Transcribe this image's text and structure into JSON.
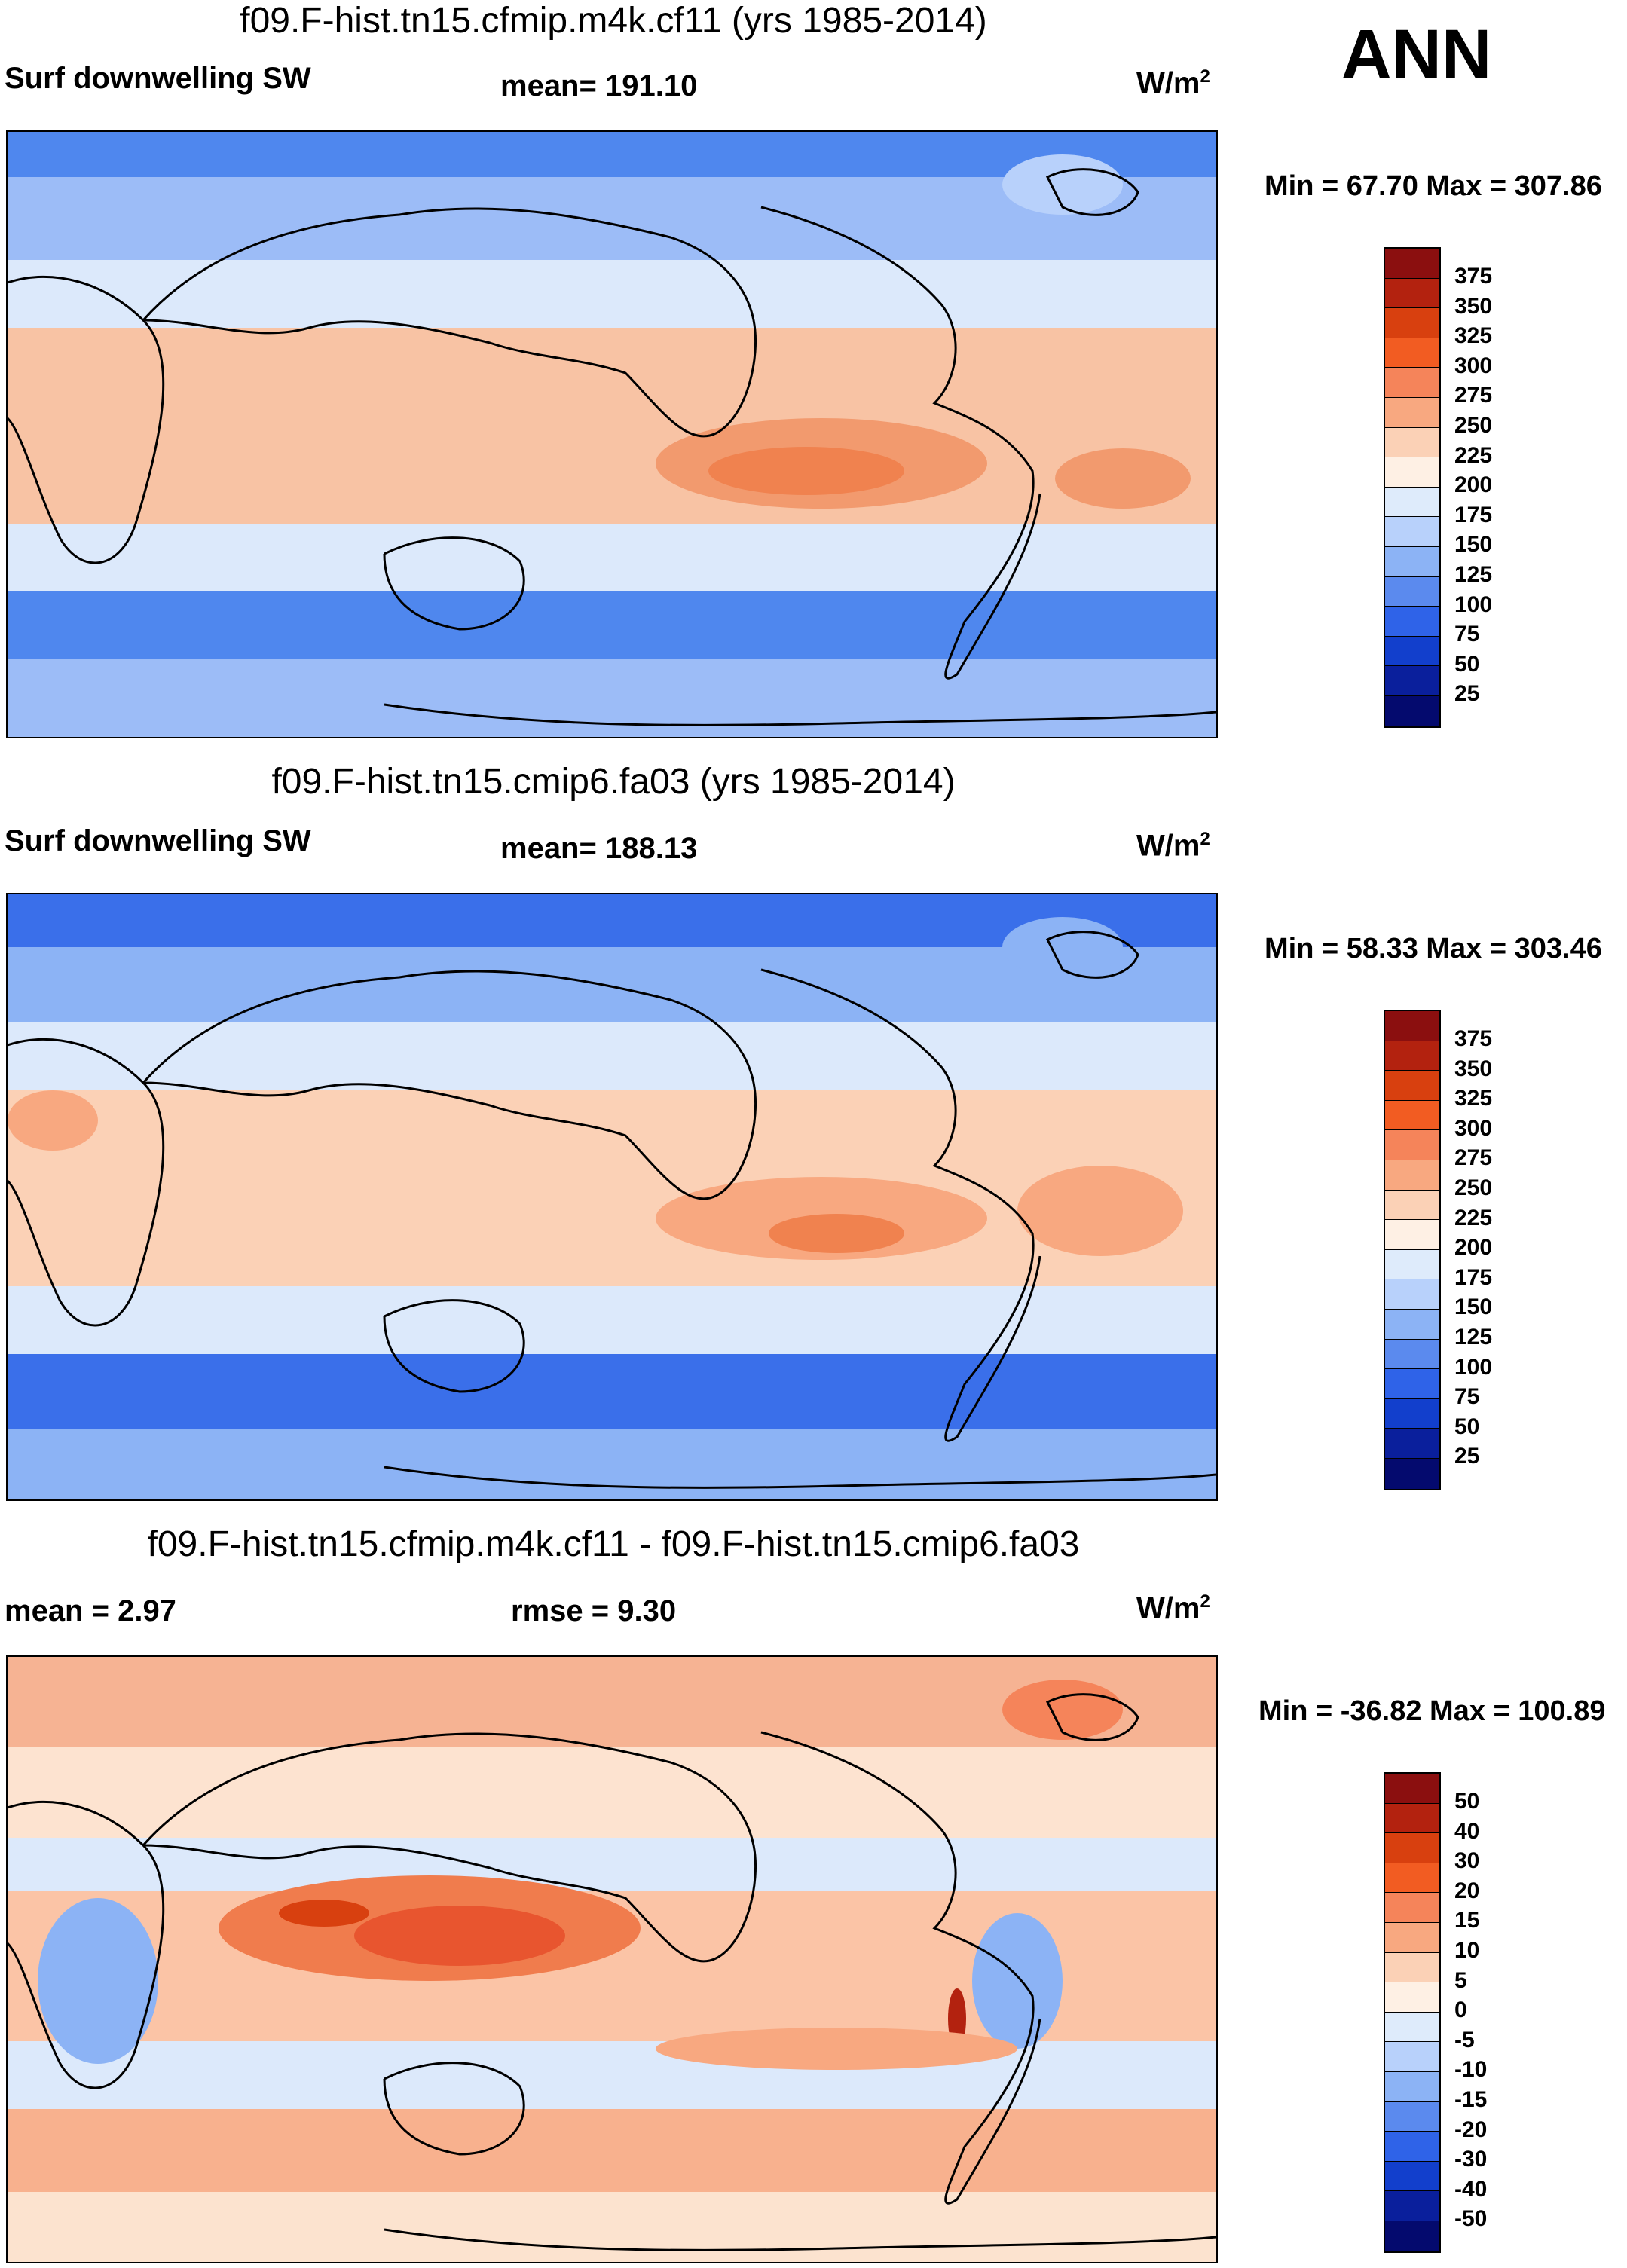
{
  "header": {
    "season": "ANN"
  },
  "panels": [
    {
      "title": "f09.F-hist.tn15.cfmip.m4k.cf11 (yrs 1985-2014)",
      "left_label": "Surf downwelling SW",
      "center_label": "mean= 191.10",
      "units_base": "W/m",
      "units_exp": "2",
      "minmax": "Min =  67.70 Max = 307.86",
      "colorbar_ticks": [
        "375",
        "350",
        "325",
        "300",
        "275",
        "250",
        "225",
        "200",
        "175",
        "150",
        "125",
        "100",
        "75",
        "50",
        "25"
      ],
      "colors": {
        "ocean_trop": "#f8c3a4",
        "ocean_mid": "#dce9fb",
        "southern": "#4f87ee",
        "arctic": "#4f87ee",
        "hot": "#f0824f"
      }
    },
    {
      "title": "f09.F-hist.tn15.cmip6.fa03 (yrs 1985-2014)",
      "left_label": "Surf downwelling SW",
      "center_label": "mean= 188.13",
      "units_base": "W/m",
      "units_exp": "2",
      "minmax": "Min =  58.33 Max = 303.46",
      "colorbar_ticks": [
        "375",
        "350",
        "325",
        "300",
        "275",
        "250",
        "225",
        "200",
        "175",
        "150",
        "125",
        "100",
        "75",
        "50",
        "25"
      ],
      "colors": {
        "ocean_trop": "#f8c3a4",
        "ocean_mid": "#dce9fb",
        "southern": "#3a6fea",
        "arctic": "#3a6fea",
        "hot": "#f0824f"
      }
    },
    {
      "title": "f09.F-hist.tn15.cfmip.m4k.cf11 - f09.F-hist.tn15.cmip6.fa03",
      "left_label": "mean =   2.97",
      "center_label": "rmse =    9.30",
      "units_base": "W/m",
      "units_exp": "2",
      "minmax": "Min = -36.82 Max = 100.89",
      "colorbar_ticks": [
        "50",
        "40",
        "30",
        "20",
        "15",
        "10",
        "5",
        "0",
        "-5",
        "-10",
        "-15",
        "-20",
        "-30",
        "-40",
        "-50"
      ],
      "colors": {
        "ocean_trop": "#f7a782",
        "ocean_mid": "#fde3d0",
        "southern": "#fce3cf",
        "arctic": "#f6b393",
        "hot": "#e8552f"
      }
    }
  ],
  "colorbar_colors": [
    "#8b0f0f",
    "#b3220f",
    "#d8400f",
    "#f25c22",
    "#f5845a",
    "#f8a880",
    "#fbd1b6",
    "#fef0e4",
    "#deebfb",
    "#b8d1fb",
    "#8cb3f5",
    "#5b8aee",
    "#2f63e8",
    "#123fcc",
    "#0a1f9c",
    "#040a6e"
  ],
  "map_features": {
    "coastlines": "black"
  }
}
